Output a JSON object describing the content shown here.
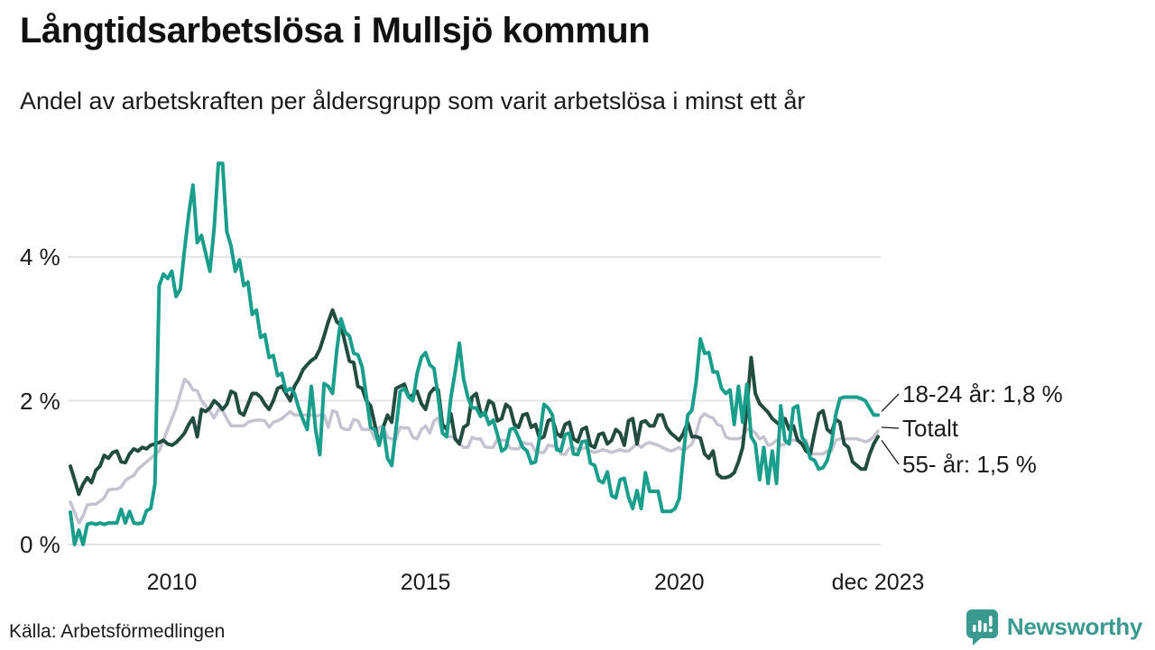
{
  "header": {
    "title": "Långtidsarbetslösa i Mullsjö kommun",
    "subtitle": "Andel av arbetskraften per åldersgrupp som varit arbetslösa i minst ett år"
  },
  "chart_data": {
    "type": "line",
    "title": "Långtidsarbetslösa i Mullsjö kommun",
    "x_unit": "month",
    "x_start": "2008-01",
    "x_end": "2023-12",
    "ylim": [
      0,
      5.5
    ],
    "grid": "horizontal",
    "grid_color": "#e4e4e6",
    "text_color": "#1a1a1a",
    "x_ticks": [
      {
        "label": "2010",
        "month_index": 24
      },
      {
        "label": "2015",
        "month_index": 84
      },
      {
        "label": "2020",
        "month_index": 144
      },
      {
        "label": "dec 2023",
        "month_index": 191
      }
    ],
    "y_ticks": [
      {
        "label": "0 %",
        "value": 0
      },
      {
        "label": "2 %",
        "value": 2
      },
      {
        "label": "4 %",
        "value": 4
      }
    ],
    "annotations": [
      {
        "text": "18-24 år: 1,8 %",
        "anchor_series": 0
      },
      {
        "text": "Totalt",
        "anchor_series": 1
      },
      {
        "text": "55- år: 1,5 %",
        "anchor_series": 2
      }
    ],
    "series": [
      {
        "name": "18-24 år",
        "color": "#1a9e8c",
        "last_value": 1.8,
        "values": [
          0.45,
          0.0,
          0.2,
          0.0,
          0.28,
          0.3,
          0.28,
          0.3,
          0.28,
          0.3,
          0.3,
          0.3,
          0.49,
          0.3,
          0.46,
          0.3,
          0.29,
          0.3,
          0.47,
          0.5,
          0.84,
          3.6,
          3.76,
          3.7,
          3.8,
          3.45,
          3.55,
          4.1,
          4.6,
          5.0,
          4.2,
          4.3,
          4.05,
          3.8,
          4.4,
          5.3,
          5.3,
          4.35,
          4.15,
          3.8,
          3.96,
          3.6,
          3.65,
          3.2,
          3.26,
          2.88,
          2.92,
          2.6,
          2.63,
          2.35,
          2.38,
          2.13,
          2.17,
          2.1,
          1.9,
          1.74,
          1.6,
          2.2,
          1.6,
          1.25,
          2.24,
          2.2,
          2.1,
          2.7,
          3.14,
          2.95,
          2.9,
          2.66,
          2.64,
          2.47,
          2.06,
          1.63,
          1.6,
          1.38,
          1.63,
          1.2,
          1.1,
          1.6,
          2.13,
          2.17,
          2.05,
          2.0,
          2.38,
          2.6,
          2.67,
          2.5,
          2.45,
          2.05,
          1.55,
          1.5,
          2.05,
          2.4,
          2.8,
          2.3,
          2.05,
          1.9,
          1.9,
          1.78,
          1.84,
          1.67,
          1.73,
          1.53,
          1.3,
          1.34,
          1.6,
          1.62,
          1.49,
          1.35,
          1.3,
          1.13,
          1.15,
          1.5,
          1.95,
          1.9,
          1.8,
          1.32,
          1.3,
          1.53,
          1.55,
          1.26,
          1.25,
          1.43,
          1.44,
          1.13,
          1.1,
          0.89,
          0.86,
          1.01,
          0.68,
          0.65,
          0.9,
          0.92,
          0.66,
          0.5,
          0.75,
          0.5,
          1.0,
          0.74,
          0.74,
          0.74,
          0.46,
          0.46,
          0.46,
          0.5,
          0.64,
          1.26,
          1.8,
          1.87,
          2.26,
          2.86,
          2.66,
          2.67,
          2.4,
          2.4,
          2.17,
          2.1,
          2.15,
          1.67,
          2.2,
          1.7,
          2.23,
          1.5,
          1.4,
          0.9,
          1.35,
          0.85,
          1.3,
          0.85,
          1.93,
          1.45,
          1.4,
          1.9,
          1.93,
          1.5,
          1.4,
          1.2,
          1.17,
          1.05,
          1.07,
          1.17,
          1.4,
          1.8,
          2.03,
          2.05,
          2.05,
          2.05,
          2.05,
          2.03,
          2.0,
          1.9,
          1.8,
          1.8
        ]
      },
      {
        "name": "Totalt",
        "color": "#c5c3d0",
        "last_value": 1.58,
        "values": [
          0.59,
          0.45,
          0.3,
          0.4,
          0.55,
          0.56,
          0.56,
          0.6,
          0.65,
          0.76,
          0.77,
          0.77,
          0.8,
          0.89,
          0.93,
          0.96,
          1.05,
          1.1,
          1.15,
          1.2,
          1.25,
          1.3,
          1.45,
          1.6,
          1.75,
          1.9,
          2.1,
          2.3,
          2.25,
          2.15,
          2.14,
          2.0,
          1.93,
          1.85,
          1.76,
          1.88,
          1.86,
          1.75,
          1.65,
          1.65,
          1.65,
          1.65,
          1.7,
          1.72,
          1.73,
          1.73,
          1.72,
          1.63,
          1.7,
          1.72,
          1.75,
          1.8,
          1.85,
          1.8,
          1.8,
          1.8,
          1.8,
          1.8,
          1.78,
          1.8,
          1.8,
          1.63,
          1.86,
          1.84,
          1.63,
          1.6,
          1.6,
          1.74,
          1.72,
          1.6,
          1.6,
          1.6,
          1.47,
          1.63,
          1.65,
          1.49,
          1.47,
          1.47,
          1.63,
          1.62,
          1.62,
          1.49,
          1.47,
          1.6,
          1.65,
          1.55,
          1.72,
          1.76,
          1.55,
          1.5,
          1.5,
          1.5,
          1.4,
          1.35,
          1.35,
          1.49,
          1.47,
          1.47,
          1.36,
          1.35,
          1.35,
          1.47,
          1.45,
          1.45,
          1.34,
          1.33,
          1.33,
          1.42,
          1.4,
          1.4,
          1.3,
          1.28,
          1.28,
          1.38,
          1.37,
          1.37,
          1.26,
          1.25,
          1.34,
          1.35,
          1.32,
          1.33,
          1.35,
          1.3,
          1.28,
          1.3,
          1.32,
          1.3,
          1.28,
          1.3,
          1.32,
          1.3,
          1.3,
          1.35,
          1.4,
          1.35,
          1.4,
          1.42,
          1.4,
          1.38,
          1.35,
          1.32,
          1.3,
          1.32,
          1.35,
          1.3,
          1.35,
          1.4,
          1.55,
          1.76,
          1.82,
          1.78,
          1.76,
          1.67,
          1.65,
          1.5,
          1.47,
          1.47,
          1.47,
          1.5,
          1.6,
          1.6,
          1.55,
          1.47,
          1.5,
          1.38,
          1.4,
          1.45,
          1.38,
          1.4,
          1.45,
          1.45,
          1.45,
          1.45,
          1.45,
          1.26,
          1.26,
          1.26,
          1.26,
          1.3,
          1.3,
          1.45,
          1.47,
          1.47,
          1.47,
          1.47,
          1.47,
          1.45,
          1.43,
          1.45,
          1.5,
          1.58
        ]
      },
      {
        "name": "55- år",
        "color": "#214c3f",
        "last_value": 1.5,
        "values": [
          1.09,
          0.9,
          0.7,
          0.84,
          0.93,
          0.86,
          1.03,
          1.09,
          1.24,
          1.2,
          1.28,
          1.3,
          1.15,
          1.14,
          1.26,
          1.33,
          1.3,
          1.35,
          1.33,
          1.38,
          1.4,
          1.42,
          1.45,
          1.4,
          1.38,
          1.42,
          1.48,
          1.55,
          1.67,
          1.76,
          1.5,
          1.88,
          1.85,
          1.9,
          2.0,
          1.95,
          1.88,
          1.95,
          2.13,
          2.1,
          1.84,
          1.8,
          1.95,
          2.1,
          2.1,
          2.05,
          1.95,
          1.88,
          2.0,
          2.17,
          2.2,
          2.1,
          2.0,
          2.2,
          2.3,
          2.43,
          2.5,
          2.56,
          2.6,
          2.72,
          2.9,
          3.1,
          3.26,
          3.1,
          3.05,
          2.8,
          2.55,
          2.53,
          2.2,
          2.17,
          2.0,
          1.93,
          1.67,
          1.38,
          1.63,
          1.8,
          1.7,
          2.17,
          2.2,
          2.23,
          2.05,
          2.08,
          2.13,
          1.96,
          1.88,
          2.1,
          2.17,
          2.15,
          1.67,
          1.6,
          1.82,
          1.47,
          1.4,
          1.63,
          1.67,
          2.05,
          2.1,
          1.84,
          1.8,
          2.0,
          1.96,
          1.72,
          1.75,
          1.95,
          1.9,
          1.67,
          1.63,
          1.8,
          1.82,
          1.63,
          1.67,
          1.47,
          1.5,
          1.72,
          1.75,
          1.55,
          1.5,
          1.67,
          1.7,
          1.47,
          1.43,
          1.6,
          1.63,
          1.38,
          1.35,
          1.53,
          1.55,
          1.4,
          1.45,
          1.6,
          1.55,
          1.38,
          1.72,
          1.75,
          1.4,
          1.7,
          1.72,
          1.65,
          1.65,
          1.8,
          1.8,
          1.63,
          1.55,
          1.5,
          1.45,
          1.55,
          1.7,
          1.5,
          1.5,
          1.48,
          1.26,
          1.2,
          1.3,
          0.98,
          0.93,
          0.93,
          0.95,
          1.0,
          1.15,
          1.35,
          1.9,
          2.6,
          2.1,
          1.96,
          1.9,
          1.84,
          1.75,
          1.7,
          1.65,
          1.75,
          1.6,
          1.65,
          1.45,
          1.4,
          1.3,
          1.26,
          1.55,
          1.82,
          1.86,
          1.6,
          1.55,
          1.74,
          1.7,
          1.4,
          1.35,
          1.15,
          1.1,
          1.05,
          1.05,
          1.25,
          1.4,
          1.5
        ]
      }
    ]
  },
  "footer": {
    "source": "Källa: Arbetsförmedlingen",
    "brand": "Newsworthy",
    "brand_color": "#3a9a90"
  }
}
